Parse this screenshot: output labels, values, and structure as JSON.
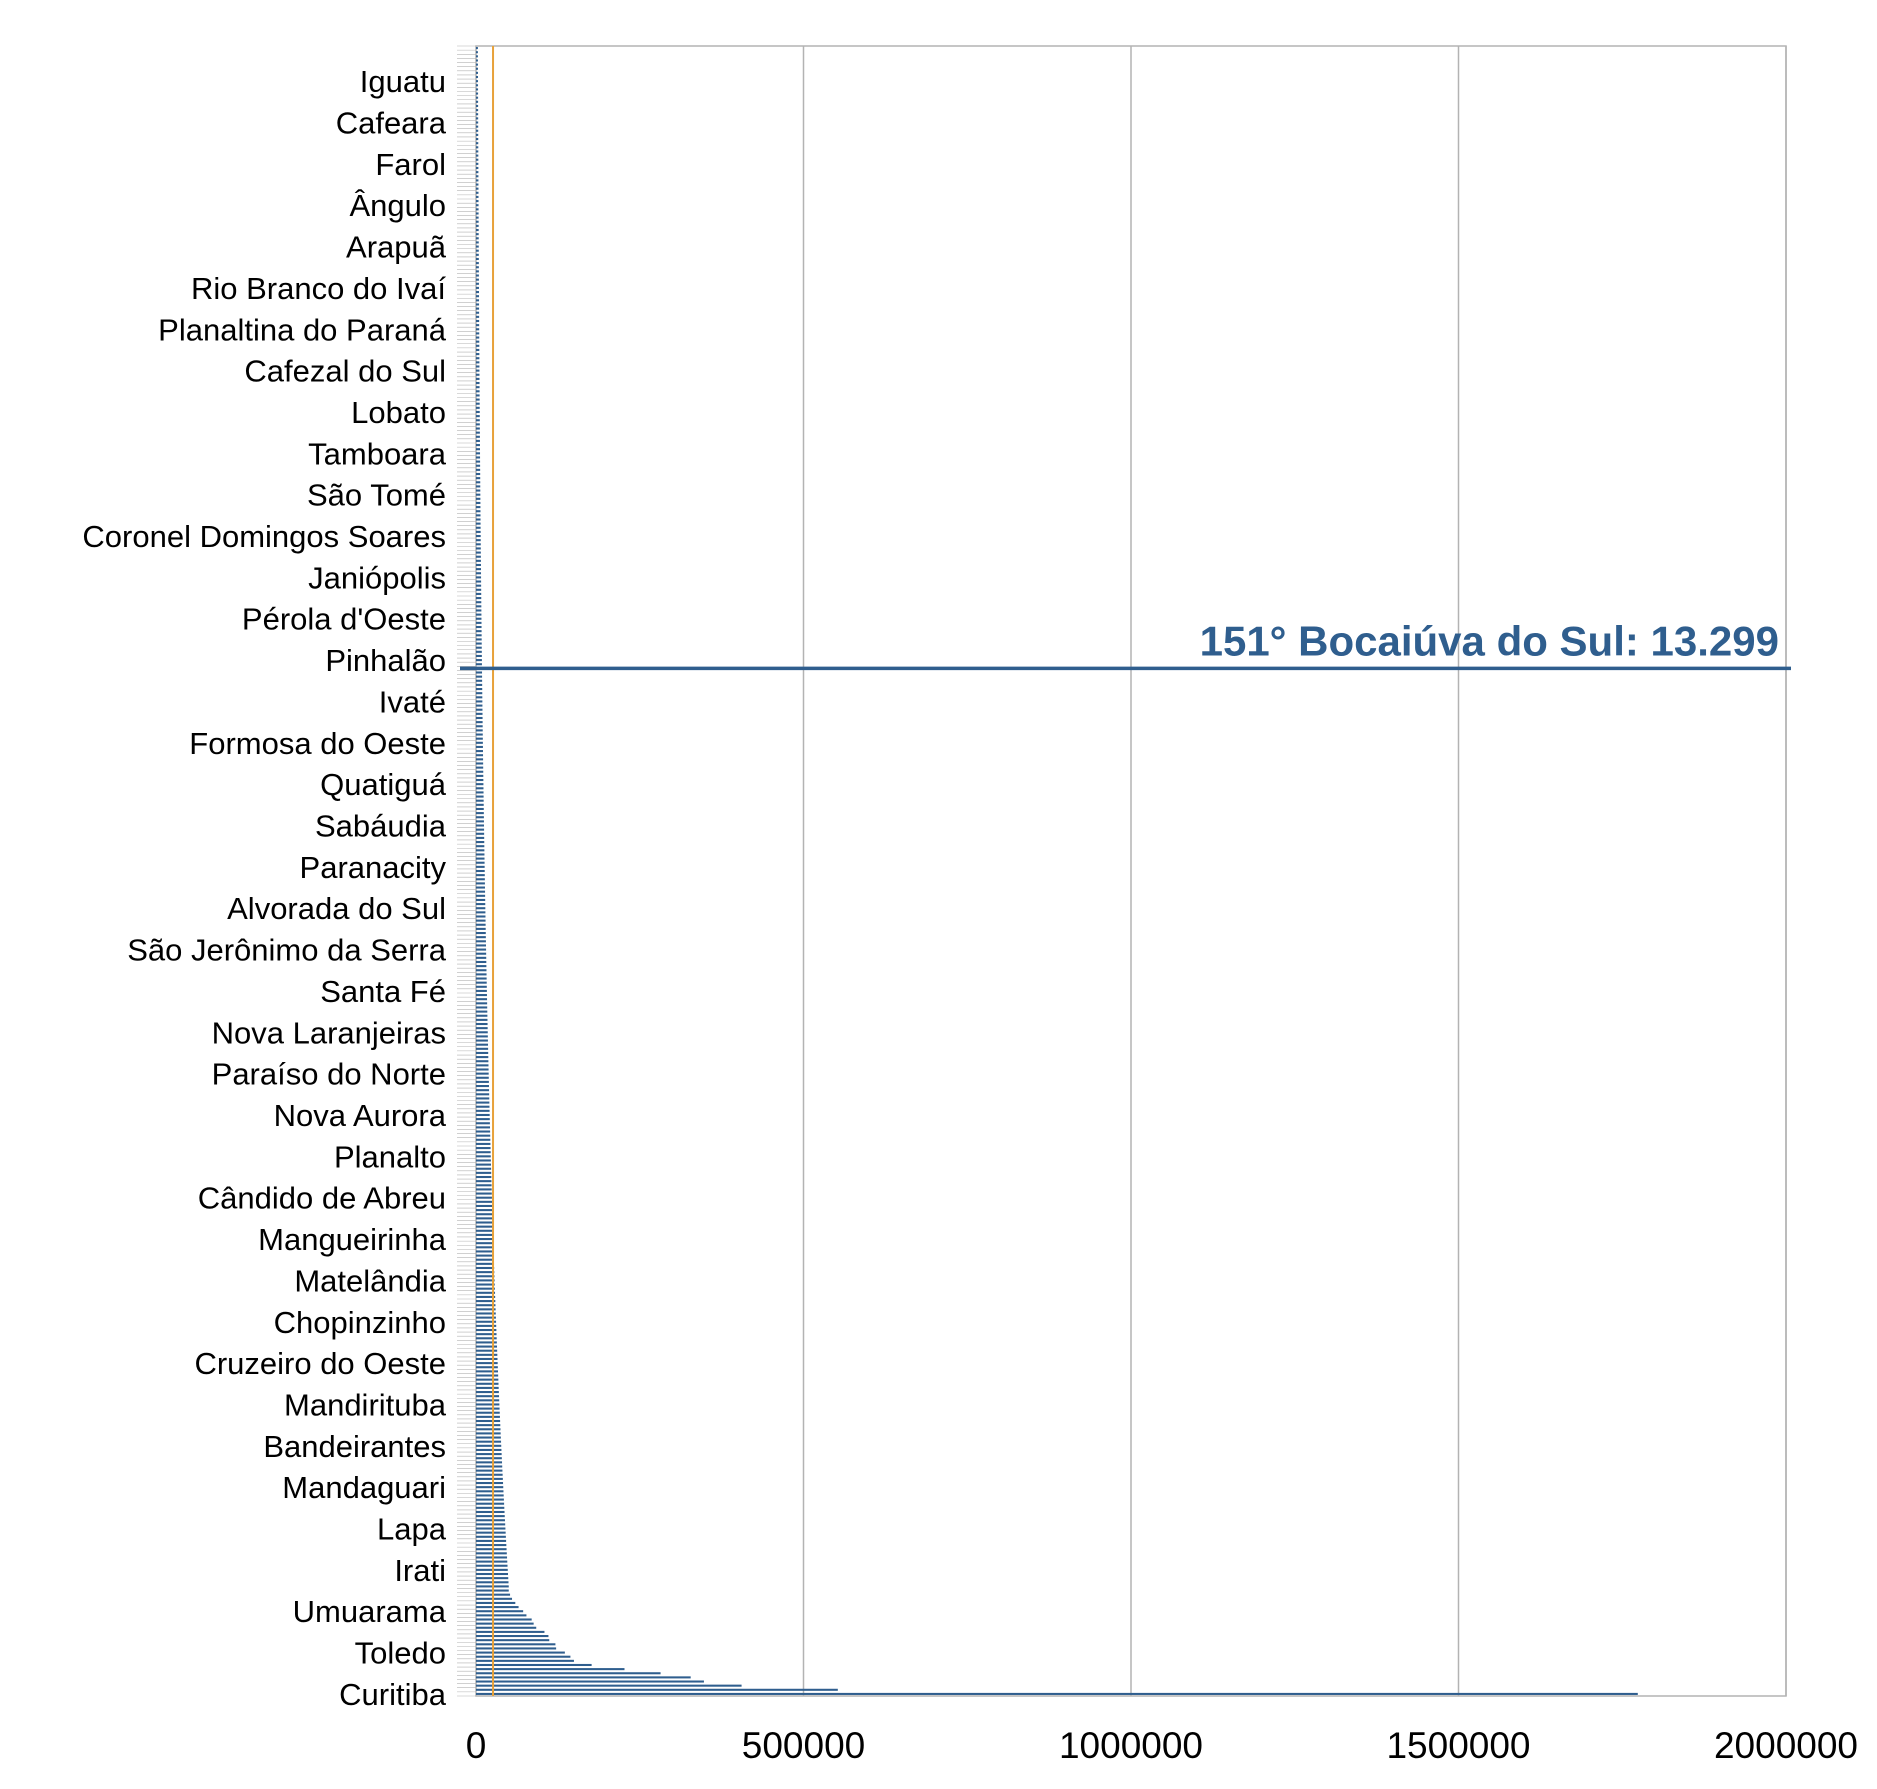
{
  "chart_data": {
    "type": "bar",
    "orientation": "horizontal",
    "title": "",
    "xlabel": "",
    "ylabel": "",
    "xlim": [
      0,
      2000000
    ],
    "x_ticks": [
      "0",
      "500000",
      "1000000",
      "1500000",
      "2000000"
    ],
    "grid": "vertical",
    "legend": "none",
    "category_count": 399,
    "visible_category_labels": [
      "Iguatu",
      "Cafeara",
      "Farol",
      "Ângulo",
      "Arapuã",
      "Rio Branco do Ivaí",
      "Planaltina do Paraná",
      "Cafezal do Sul",
      "Lobato",
      "Tamboara",
      "São Tomé",
      "Coronel Domingos Soares",
      "Janiópolis",
      "Pérola d'Oeste",
      "Pinhalão",
      "Ivaté",
      "Formosa do Oeste",
      "Quatiguá",
      "Sabáudia",
      "Paranacity",
      "Alvorada do Sul",
      "São Jerônimo da Serra",
      "Santa Fé",
      "Nova Laranjeiras",
      "Paraíso do Norte",
      "Nova Aurora",
      "Planalto",
      "Cândido de Abreu",
      "Mangueirinha",
      "Matelândia",
      "Chopinzinho",
      "Cruzeiro do Oeste",
      "Mandirituba",
      "Bandeirantes",
      "Mandaguari",
      "Lapa",
      "Irati",
      "Umuarama",
      "Toledo",
      "Curitiba"
    ],
    "top_values": [
      1773733,
      552393,
      405472,
      348003,
      327778,
      281802,
      226708,
      176523,
      149543,
      144150,
      135667,
      122336,
      121250,
      111843,
      110592,
      104513,
      91950,
      88000,
      85000,
      77000,
      72000,
      65000,
      60000,
      55000,
      52000,
      50000
    ],
    "tail_min": 2900,
    "reference_line": {
      "value": 26000,
      "color": "#e8a23a"
    },
    "highlight": {
      "rank": 151,
      "label": "151° Bocaiúva do Sul: 13.299",
      "value": 13299,
      "color": "#2f5e8e"
    },
    "bar_color": "#2f5e8e"
  }
}
